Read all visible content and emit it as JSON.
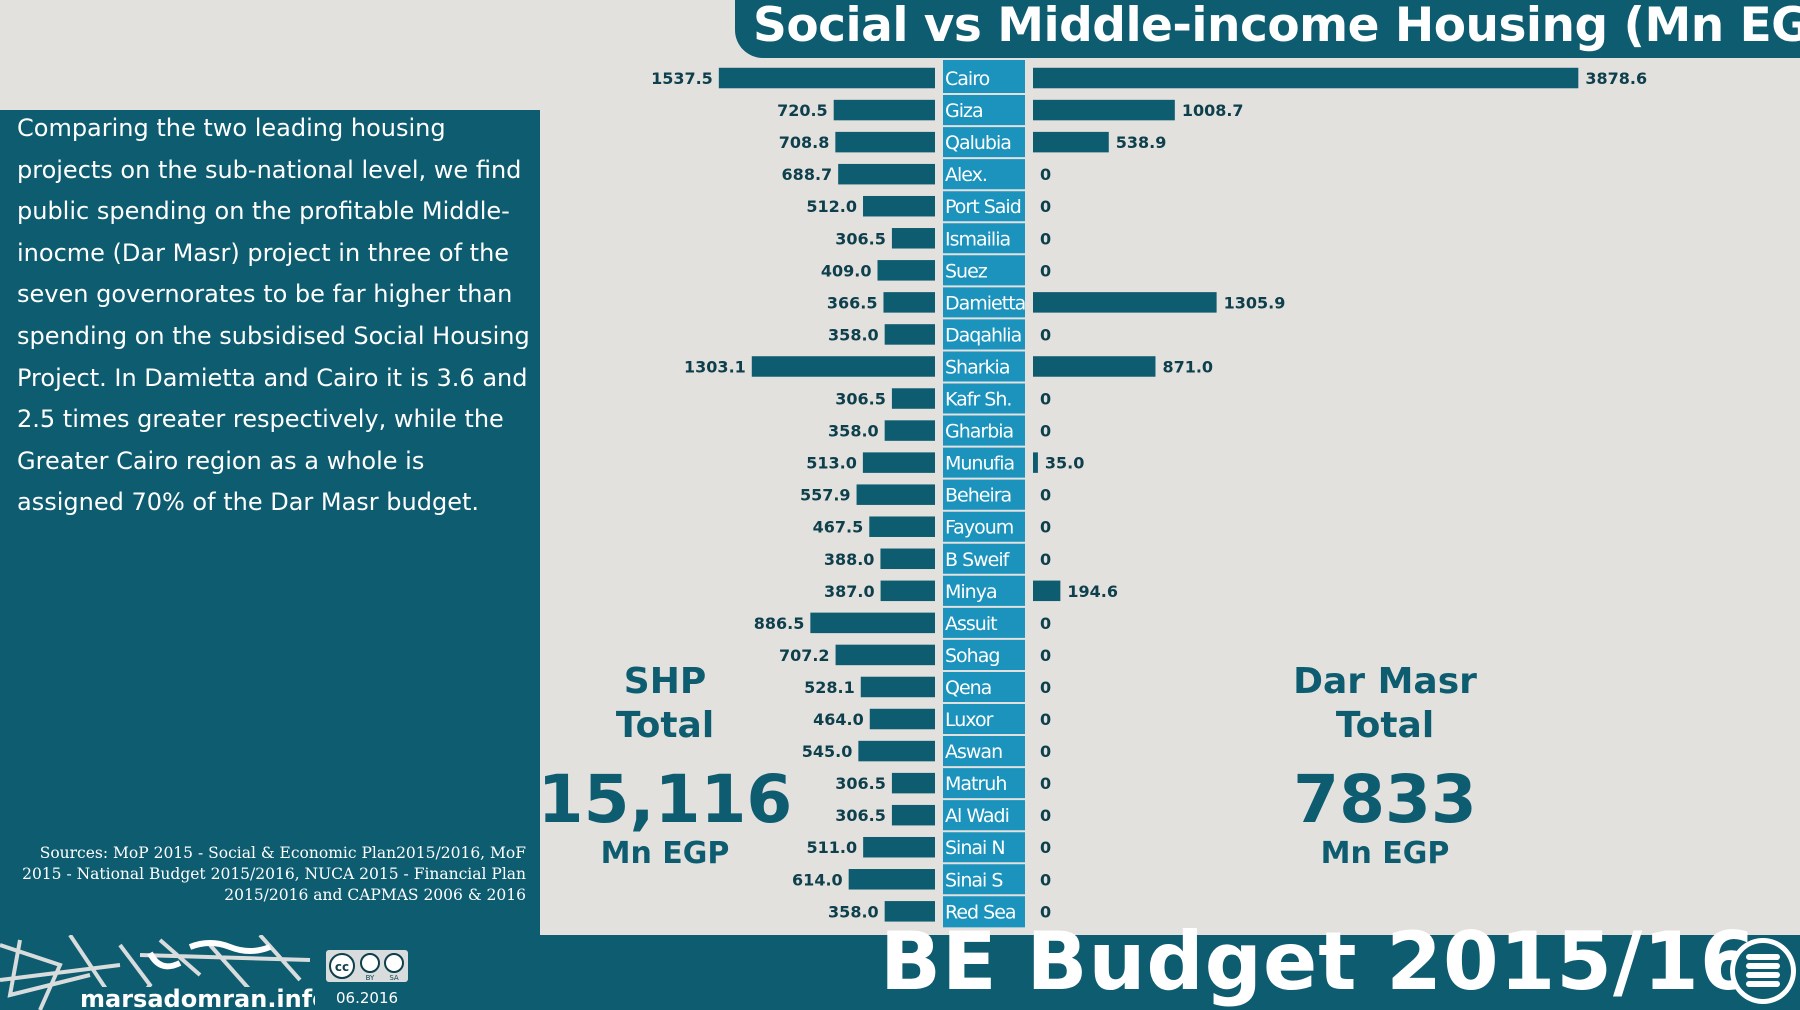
{
  "title": "Social vs Middle-income Housing (Mn EGP)",
  "description": "Comparing the two leading housing projects on the sub-national level, we find public spending on the profitable Middle-inocme (Dar Masr) project in three of the seven governorates to be far higher than spending on the subsidised Social Housing Project. In Damietta and Cairo it is 3.6 and 2.5 times greater respectively, while the Greater Cairo region as a whole is assigned 70% of the Dar Masr budget.",
  "sources": "Sources: MoP 2015 - Social & Economic Plan2015/2016, MoF 2015 - National Budget 2015/2016, NUCA 2015 - Financial Plan 2015/2016 and CAPMAS 2006 & 2016",
  "shp_total": {
    "line1": "SHP",
    "line2": "Total",
    "value": "15,116",
    "unit": "Mn EGP"
  },
  "dm_total": {
    "line1": "Dar Masr",
    "line2": "Total",
    "value": "7833",
    "unit": "Mn EGP"
  },
  "footer": {
    "site": "marsadomran.info",
    "date": "06.2016",
    "budget": "BE Budget 2015/16",
    "license": "CC BY SA"
  },
  "colors": {
    "primary": "#0e5c70",
    "label_column": "#1b93bd",
    "background": "#e3e1de"
  },
  "chart_data": {
    "type": "bar",
    "orientation": "horizontal-diverging",
    "categories": [
      "Cairo",
      "Giza",
      "Qalubia",
      "Alex.",
      "Port Said",
      "Ismailia",
      "Suez",
      "Damietta",
      "Daqahlia",
      "Sharkia",
      "Kafr Sh.",
      "Gharbia",
      "Munufia",
      "Beheira",
      "Fayoum",
      "B Sweif",
      "Minya",
      "Assuit",
      "Sohag",
      "Qena",
      "Luxor",
      "Aswan",
      "Matruh",
      "Al Wadi",
      "Sinai N",
      "Sinai S",
      "Red Sea"
    ],
    "series": [
      {
        "name": "SHP",
        "side": "left",
        "values": [
          1537.5,
          720.5,
          708.8,
          688.7,
          512.0,
          306.5,
          409.0,
          366.5,
          358.0,
          1303.1,
          306.5,
          358.0,
          513.0,
          557.9,
          467.5,
          388.0,
          387.0,
          886.5,
          707.2,
          528.1,
          464.0,
          545.0,
          306.5,
          306.5,
          511.0,
          614.0,
          358.0
        ],
        "labels": [
          "1537.5",
          "720.5",
          "708.8",
          "688.7",
          "512.0",
          "306.5",
          "409.0",
          "366.5",
          "358.0",
          "1303.1",
          "306.5",
          "358.0",
          "513.0",
          "557.9",
          "467.5",
          "388.0",
          "387.0",
          "886.5",
          "707.2",
          "528.1",
          "464.0",
          "545.0",
          "306.5",
          "306.5",
          "511.0",
          "614.0",
          "358.0"
        ]
      },
      {
        "name": "Dar Masr",
        "side": "right",
        "values": [
          3878.6,
          1008.7,
          538.9,
          0,
          0,
          0,
          0,
          1305.9,
          0,
          871.0,
          0,
          0,
          35.0,
          0,
          0,
          0,
          194.6,
          0,
          0,
          0,
          0,
          0,
          0,
          0,
          0,
          0,
          0
        ],
        "labels": [
          "3878.6",
          "1008.7",
          "538.9",
          "0",
          "0",
          "0",
          "0",
          "1305.9",
          "0",
          "871.0",
          "0",
          "0",
          "35.0",
          "0",
          "0",
          "0",
          "194.6",
          "0",
          "0",
          "0",
          "0",
          "0",
          "0",
          "0",
          "0",
          "0",
          "0"
        ]
      }
    ]
  }
}
